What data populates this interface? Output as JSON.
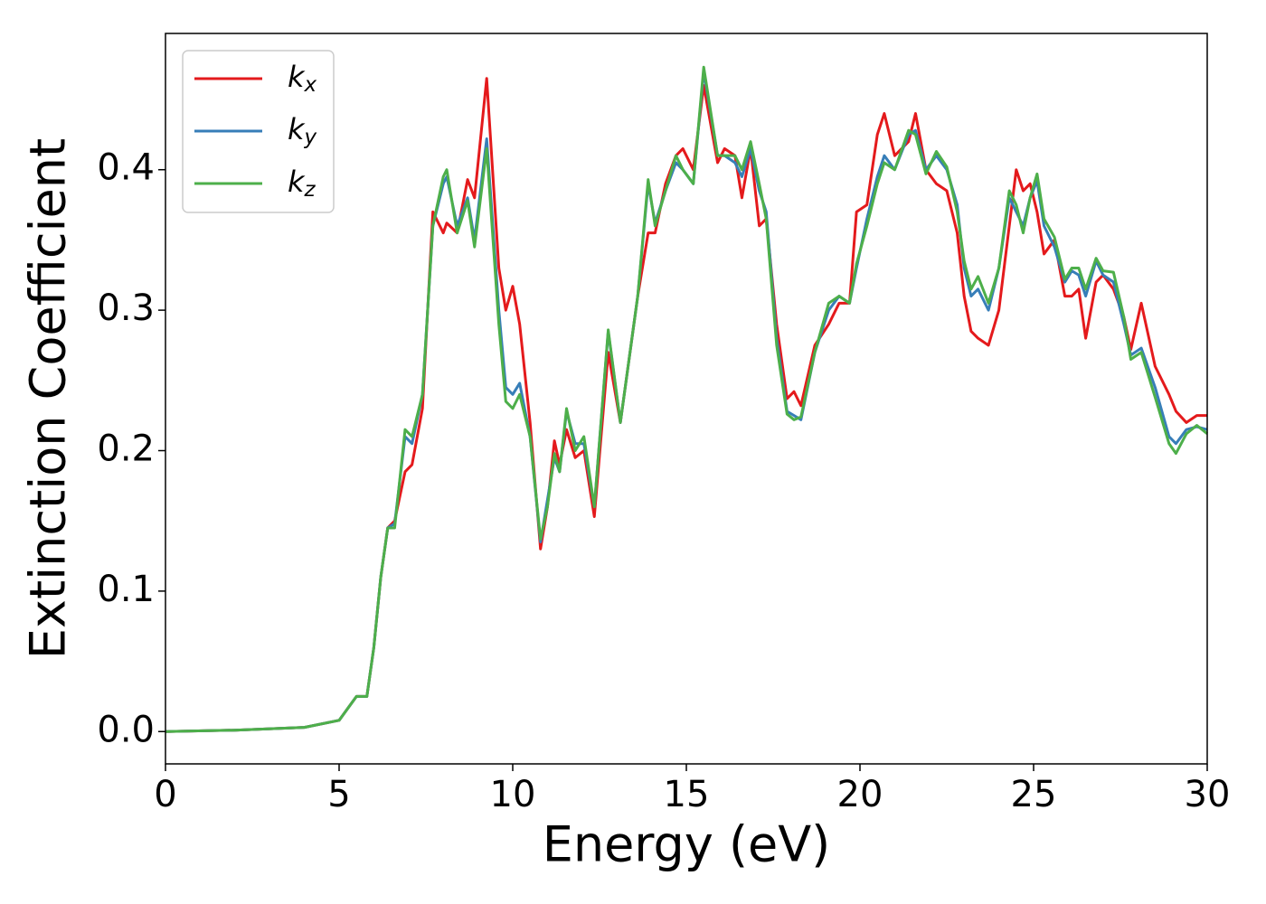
{
  "chart_data": {
    "type": "line",
    "x_label": "Energy (eV)",
    "y_label": "Extinction Coefficient",
    "x": [
      0,
      2,
      4,
      5,
      5.5,
      5.8,
      6,
      6.2,
      6.4,
      6.6,
      6.9,
      7.1,
      7.4,
      7.7,
      8,
      8.1,
      8.4,
      8.7,
      8.9,
      9.25,
      9.6,
      9.8,
      10,
      10.2,
      10.5,
      10.8,
      11,
      11.2,
      11.35,
      11.55,
      11.8,
      12.05,
      12.35,
      12.75,
      13.1,
      13.6,
      13.9,
      14.1,
      14.4,
      14.7,
      14.9,
      15.2,
      15.5,
      15.9,
      16.1,
      16.4,
      16.6,
      16.85,
      17.1,
      17.3,
      17.6,
      17.9,
      18.1,
      18.3,
      18.7,
      19.1,
      19.4,
      19.7,
      19.9,
      20.2,
      20.5,
      20.7,
      21,
      21.4,
      21.6,
      21.9,
      22.2,
      22.5,
      22.8,
      23,
      23.2,
      23.4,
      23.7,
      24,
      24.3,
      24.5,
      24.7,
      24.9,
      25.1,
      25.3,
      25.6,
      25.9,
      26.1,
      26.3,
      26.5,
      26.8,
      27,
      27.3,
      27.6,
      27.8,
      28.1,
      28.5,
      28.9,
      29.1,
      29.4,
      29.7,
      30
    ],
    "series": [
      {
        "name": "k_x",
        "color": "#e41a1c",
        "values": [
          0,
          0.001,
          0.003,
          0.008,
          0.025,
          0.025,
          0.06,
          0.11,
          0.145,
          0.15,
          0.185,
          0.19,
          0.23,
          0.37,
          0.355,
          0.362,
          0.355,
          0.393,
          0.38,
          0.465,
          0.33,
          0.3,
          0.317,
          0.29,
          0.22,
          0.13,
          0.16,
          0.207,
          0.19,
          0.215,
          0.195,
          0.2,
          0.153,
          0.27,
          0.22,
          0.31,
          0.355,
          0.355,
          0.39,
          0.41,
          0.415,
          0.4,
          0.46,
          0.405,
          0.415,
          0.41,
          0.38,
          0.415,
          0.36,
          0.365,
          0.29,
          0.237,
          0.242,
          0.232,
          0.275,
          0.29,
          0.305,
          0.305,
          0.37,
          0.375,
          0.425,
          0.44,
          0.41,
          0.42,
          0.44,
          0.4,
          0.39,
          0.385,
          0.355,
          0.31,
          0.285,
          0.28,
          0.275,
          0.3,
          0.36,
          0.4,
          0.385,
          0.39,
          0.37,
          0.34,
          0.35,
          0.31,
          0.31,
          0.315,
          0.28,
          0.32,
          0.325,
          0.315,
          0.295,
          0.272,
          0.305,
          0.26,
          0.24,
          0.228,
          0.22,
          0.225,
          0.225
        ]
      },
      {
        "name": "k_y",
        "color": "#377eb8",
        "values": [
          0,
          0.001,
          0.003,
          0.008,
          0.025,
          0.025,
          0.06,
          0.11,
          0.145,
          0.148,
          0.21,
          0.205,
          0.24,
          0.36,
          0.39,
          0.395,
          0.36,
          0.38,
          0.35,
          0.422,
          0.3,
          0.245,
          0.24,
          0.248,
          0.21,
          0.135,
          0.165,
          0.195,
          0.185,
          0.228,
          0.205,
          0.205,
          0.16,
          0.285,
          0.22,
          0.31,
          0.39,
          0.362,
          0.385,
          0.405,
          0.4,
          0.39,
          0.47,
          0.41,
          0.41,
          0.405,
          0.395,
          0.415,
          0.385,
          0.37,
          0.28,
          0.228,
          0.225,
          0.222,
          0.27,
          0.3,
          0.31,
          0.305,
          0.33,
          0.365,
          0.395,
          0.41,
          0.4,
          0.425,
          0.428,
          0.4,
          0.41,
          0.4,
          0.375,
          0.33,
          0.31,
          0.315,
          0.3,
          0.33,
          0.38,
          0.37,
          0.36,
          0.38,
          0.392,
          0.36,
          0.345,
          0.32,
          0.328,
          0.325,
          0.31,
          0.335,
          0.325,
          0.32,
          0.29,
          0.268,
          0.273,
          0.245,
          0.21,
          0.205,
          0.215,
          0.217,
          0.215
        ]
      },
      {
        "name": "k_z",
        "color": "#4daf4a",
        "values": [
          0,
          0.001,
          0.003,
          0.008,
          0.025,
          0.025,
          0.06,
          0.11,
          0.145,
          0.145,
          0.215,
          0.21,
          0.24,
          0.36,
          0.395,
          0.4,
          0.355,
          0.378,
          0.345,
          0.415,
          0.29,
          0.235,
          0.23,
          0.24,
          0.21,
          0.137,
          0.16,
          0.198,
          0.185,
          0.23,
          0.2,
          0.21,
          0.16,
          0.286,
          0.22,
          0.31,
          0.393,
          0.36,
          0.385,
          0.41,
          0.4,
          0.39,
          0.473,
          0.41,
          0.41,
          0.41,
          0.4,
          0.42,
          0.39,
          0.365,
          0.275,
          0.226,
          0.222,
          0.224,
          0.27,
          0.305,
          0.31,
          0.305,
          0.333,
          0.36,
          0.39,
          0.405,
          0.4,
          0.428,
          0.425,
          0.397,
          0.413,
          0.402,
          0.37,
          0.335,
          0.315,
          0.324,
          0.305,
          0.33,
          0.385,
          0.375,
          0.355,
          0.38,
          0.397,
          0.365,
          0.352,
          0.322,
          0.33,
          0.33,
          0.315,
          0.337,
          0.328,
          0.327,
          0.295,
          0.265,
          0.27,
          0.238,
          0.205,
          0.198,
          0.212,
          0.218,
          0.212
        ]
      }
    ],
    "xlim": [
      0,
      30
    ],
    "xticks": [
      0,
      5,
      10,
      15,
      20,
      25,
      30
    ],
    "ylim": [
      -0.023,
      0.497
    ],
    "yticks": [
      {
        "value": 0,
        "label": "0.0"
      },
      {
        "value": 0.1,
        "label": "0.1"
      },
      {
        "value": 0.2,
        "label": "0.2"
      },
      {
        "value": 0.3,
        "label": "0.3"
      },
      {
        "value": 0.4,
        "label": "0.4"
      }
    ],
    "grid": false,
    "legend": "upper left"
  }
}
